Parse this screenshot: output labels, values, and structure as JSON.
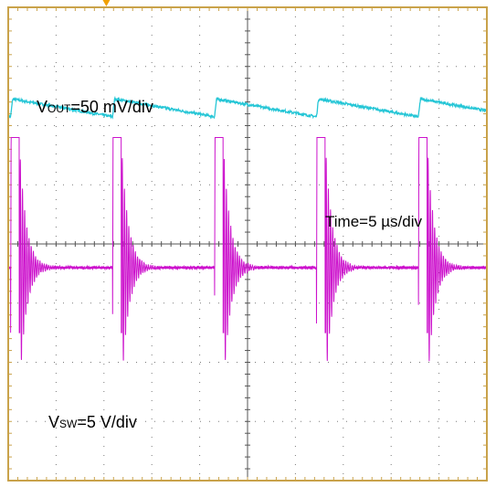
{
  "chart_data": {
    "type": "line",
    "title": "",
    "xlabel": "",
    "ylabel": "",
    "grid": true,
    "grid_divisions": {
      "x": 10,
      "y": 8
    },
    "annotations": {
      "vout": {
        "prefix": "V",
        "subscript": "OUT",
        "suffix": "=50 mV/div"
      },
      "time": {
        "text": "Time=5 µs/div"
      },
      "vsw": {
        "prefix": "V",
        "subscript": "SW",
        "suffix": "=5 V/div"
      }
    },
    "time_scale": {
      "per_div": 5,
      "unit": "µs"
    },
    "switching_period_div": 2.13,
    "first_edge_div": 0.05,
    "series": [
      {
        "key": "vout",
        "scale_per_div": 50,
        "unit": "mV",
        "offset_div": 2.3,
        "ripple_peak_to_peak_mV": 15,
        "ripple_shape": "sawtooth"
      },
      {
        "key": "vsw",
        "scale_per_div": 5,
        "unit": "V",
        "offset_div": -0.4,
        "high_level_V": 11,
        "low_level_V": -5.5,
        "settle_level_V": 0,
        "ringing_amplitude_V": 10,
        "pulse_width_div": 0.18,
        "ringing_decay": "exponential"
      }
    ],
    "colors": {
      "frame": "#c9a24a",
      "grid": "#555555",
      "dots": "#7a7a7a",
      "vout": "#26c6d6",
      "vsw": "#cc11cc",
      "trigger": "#f0a000"
    }
  }
}
